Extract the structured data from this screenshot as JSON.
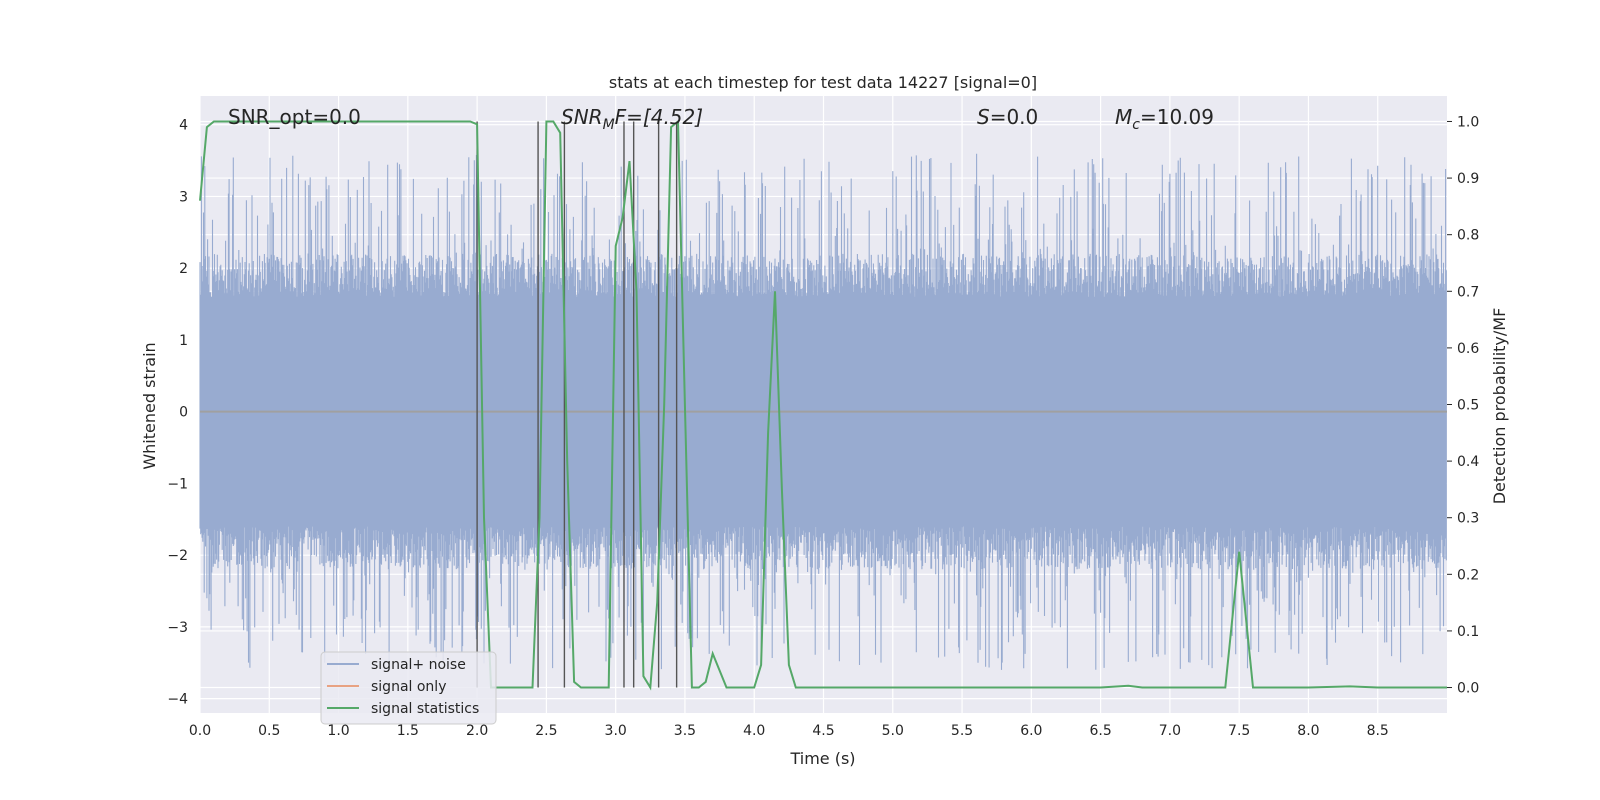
{
  "chart_data": {
    "type": "line",
    "title": "stats at each timestep for test data 14227 [signal=0]",
    "xlabel": "Time (s)",
    "ylabel_left": "Whitened strain",
    "ylabel_right": "Detection probability/MF",
    "xlim": [
      0.0,
      9.0
    ],
    "ylim_left": [
      -4.2,
      4.4
    ],
    "ylim_right": [
      -0.045,
      1.045
    ],
    "x_ticks": [
      "0.0",
      "0.5",
      "1.0",
      "1.5",
      "2.0",
      "2.5",
      "3.0",
      "3.5",
      "4.0",
      "4.5",
      "5.0",
      "5.5",
      "6.0",
      "6.5",
      "7.0",
      "7.5",
      "8.0",
      "8.5"
    ],
    "y_left_ticks": [
      "4",
      "3",
      "2",
      "1",
      "0",
      "−1",
      "−2",
      "−3",
      "−4"
    ],
    "y_right_ticks": [
      "1.0",
      "0.9",
      "0.8",
      "0.7",
      "0.6",
      "0.5",
      "0.4",
      "0.3",
      "0.2",
      "0.1",
      "0.0"
    ],
    "grid": true,
    "colors": {
      "plot_bg": "#eaeaf2",
      "grid": "#ffffff",
      "signal_noise": "#98abd0",
      "signal_only": "#e8a282",
      "signal_statistics": "#55a868",
      "vlines": "#555555"
    },
    "annotations": {
      "snr_opt": "SNR_opt=0.0",
      "snr_mf_base": "SNR",
      "snr_mf_sub": "M",
      "snr_mf_rest": "F=[4.52]",
      "s_label_ital": "S",
      "s_label_rest": "=0.0",
      "mc_ital": "M",
      "mc_sub": "c",
      "mc_rest": "=10.09"
    },
    "legend": {
      "placement": "lower-left",
      "entries": [
        "signal+ noise",
        "signal only",
        "signal statistics"
      ]
    },
    "noise_envelope": {
      "core_amplitude": 1.6,
      "spike_max": 3.6
    },
    "series": [
      {
        "name": "signal statistics",
        "axis": "right",
        "x": [
          0.0,
          0.05,
          0.1,
          0.15,
          0.2,
          0.25,
          0.3,
          0.35,
          0.4,
          0.45,
          0.5,
          0.55,
          0.6,
          0.65,
          0.7,
          0.75,
          0.8,
          0.85,
          0.9,
          0.95,
          1.0,
          1.05,
          1.1,
          1.15,
          1.2,
          1.25,
          1.3,
          1.35,
          1.4,
          1.45,
          1.5,
          1.55,
          1.6,
          1.65,
          1.7,
          1.75,
          1.8,
          1.85,
          1.9,
          1.95,
          2.0,
          2.05,
          2.1,
          2.15,
          2.2,
          2.25,
          2.3,
          2.35,
          2.4,
          2.45,
          2.5,
          2.55,
          2.6,
          2.65,
          2.7,
          2.75,
          2.8,
          2.85,
          2.9,
          2.95,
          3.0,
          3.05,
          3.1,
          3.15,
          3.2,
          3.25,
          3.3,
          3.35,
          3.4,
          3.45,
          3.5,
          3.55,
          3.6,
          3.65,
          3.7,
          3.75,
          3.8,
          3.85,
          3.9,
          3.95,
          4.0,
          4.05,
          4.1,
          4.15,
          4.2,
          4.25,
          4.3,
          4.35,
          4.4,
          4.45,
          4.5,
          5.0,
          5.5,
          6.0,
          6.5,
          6.7,
          6.8,
          7.0,
          7.35,
          7.4,
          7.45,
          7.5,
          7.55,
          7.6,
          8.0,
          8.3,
          8.5,
          9.0
        ],
        "values": [
          0.86,
          0.99,
          1.0,
          1.0,
          1.0,
          1.0,
          1.0,
          1.0,
          1.0,
          1.0,
          1.0,
          1.0,
          1.0,
          1.0,
          1.0,
          1.0,
          1.0,
          1.0,
          1.0,
          1.0,
          1.0,
          1.0,
          1.0,
          1.0,
          1.0,
          1.0,
          1.0,
          1.0,
          1.0,
          1.0,
          1.0,
          1.0,
          1.0,
          1.0,
          1.0,
          1.0,
          1.0,
          1.0,
          1.0,
          1.0,
          0.995,
          0.3,
          0.0,
          0.0,
          0.0,
          0.0,
          0.0,
          0.0,
          0.0,
          0.3,
          1.0,
          1.0,
          0.98,
          0.4,
          0.01,
          0.0,
          0.0,
          0.0,
          0.0,
          0.0,
          0.78,
          0.83,
          0.93,
          0.7,
          0.02,
          0.0,
          0.15,
          0.5,
          0.99,
          1.0,
          0.5,
          0.0,
          0.0,
          0.01,
          0.06,
          0.03,
          0.0,
          0.0,
          0.0,
          0.0,
          0.0,
          0.04,
          0.45,
          0.7,
          0.35,
          0.04,
          0.0,
          0.0,
          0.0,
          0.0,
          0.0,
          0.0,
          0.0,
          0.0,
          0.0,
          0.003,
          0.0,
          0.0,
          0.0,
          0.0,
          0.12,
          0.24,
          0.12,
          0.0,
          0.0,
          0.002,
          0.0,
          0.0
        ]
      }
    ],
    "vlines_x": [
      2.0,
      2.44,
      2.63,
      3.06,
      3.13,
      3.31,
      3.44
    ]
  }
}
